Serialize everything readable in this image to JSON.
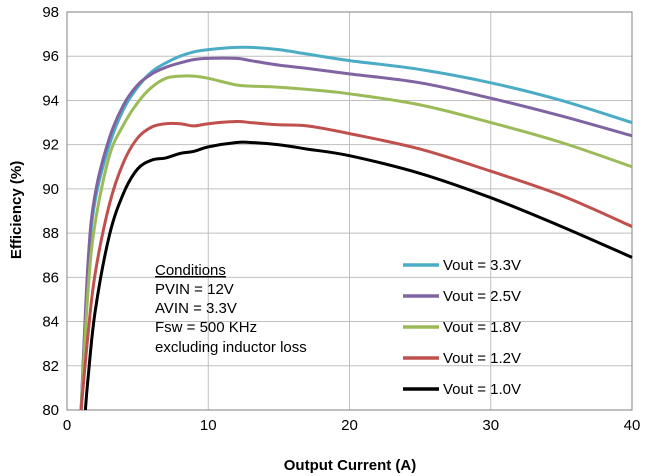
{
  "chart_data": {
    "type": "line",
    "xlabel": "Output Current (A)",
    "ylabel": "Efficiency (%)",
    "xlim": [
      0,
      40
    ],
    "ylim": [
      80,
      98
    ],
    "xticks": [
      0,
      10,
      20,
      30,
      40
    ],
    "yticks": [
      80,
      82,
      84,
      86,
      88,
      90,
      92,
      94,
      96,
      98
    ],
    "grid": true,
    "legend_position": "bottom-right",
    "annotation": {
      "heading": "Conditions",
      "lines": [
        "PVIN = 12V",
        "AVIN = 3.3V",
        "Fsw = 500 KHz",
        "excluding inductor loss"
      ]
    },
    "series": [
      {
        "name": "Vout = 3.3V",
        "color": "#4bacc6",
        "x": [
          1,
          1.5,
          2,
          3,
          4,
          5,
          6,
          7,
          8,
          9,
          10,
          12,
          13,
          15,
          17,
          20,
          25,
          30,
          35,
          40
        ],
        "y": [
          80,
          86.5,
          89.5,
          92,
          93.6,
          94.6,
          95.3,
          95.7,
          96.0,
          96.2,
          96.3,
          96.4,
          96.4,
          96.3,
          96.1,
          95.8,
          95.4,
          94.8,
          94.0,
          93.0
        ]
      },
      {
        "name": "Vout = 2.5V",
        "color": "#8064a2",
        "x": [
          1,
          1.5,
          2,
          3,
          4,
          5,
          6,
          7,
          8,
          9,
          10,
          12,
          13,
          15,
          17,
          20,
          25,
          30,
          35,
          40
        ],
        "y": [
          80,
          86.8,
          89.8,
          92.3,
          93.8,
          94.7,
          95.2,
          95.5,
          95.7,
          95.85,
          95.9,
          95.9,
          95.8,
          95.6,
          95.45,
          95.2,
          94.8,
          94.1,
          93.3,
          92.4
        ]
      },
      {
        "name": "Vout = 1.8V",
        "color": "#9bbb59",
        "x": [
          1,
          1.5,
          2,
          3,
          4,
          5,
          6,
          7,
          8,
          9,
          10,
          12,
          13,
          15,
          17,
          20,
          25,
          30,
          35,
          40
        ],
        "y": [
          80,
          85.5,
          88.5,
          91.5,
          92.9,
          93.9,
          94.6,
          95.0,
          95.1,
          95.1,
          95.0,
          94.7,
          94.65,
          94.6,
          94.5,
          94.3,
          93.8,
          93.0,
          92.1,
          91.0
        ]
      },
      {
        "name": "Vout = 1.2V",
        "color": "#c0504d",
        "x": [
          1,
          1.5,
          2,
          3,
          4,
          5,
          6,
          7,
          8,
          9,
          10,
          12,
          13,
          15,
          17,
          20,
          25,
          30,
          35,
          40
        ],
        "y": [
          80,
          83.5,
          86.2,
          89.3,
          91.2,
          92.3,
          92.8,
          92.95,
          92.95,
          92.85,
          92.95,
          93.05,
          93.0,
          92.9,
          92.85,
          92.5,
          91.8,
          90.8,
          89.7,
          88.3
        ]
      },
      {
        "name": "Vout = 1.0V",
        "color": "#000000",
        "x": [
          1.3,
          1.5,
          2,
          3,
          4,
          5,
          6,
          7,
          8,
          9,
          10,
          12,
          13,
          15,
          17,
          20,
          25,
          30,
          35,
          40
        ],
        "y": [
          80,
          81.5,
          84.5,
          87.9,
          89.8,
          90.9,
          91.3,
          91.4,
          91.6,
          91.7,
          91.9,
          92.1,
          92.1,
          92.0,
          91.8,
          91.5,
          90.7,
          89.6,
          88.3,
          86.9
        ]
      }
    ]
  }
}
